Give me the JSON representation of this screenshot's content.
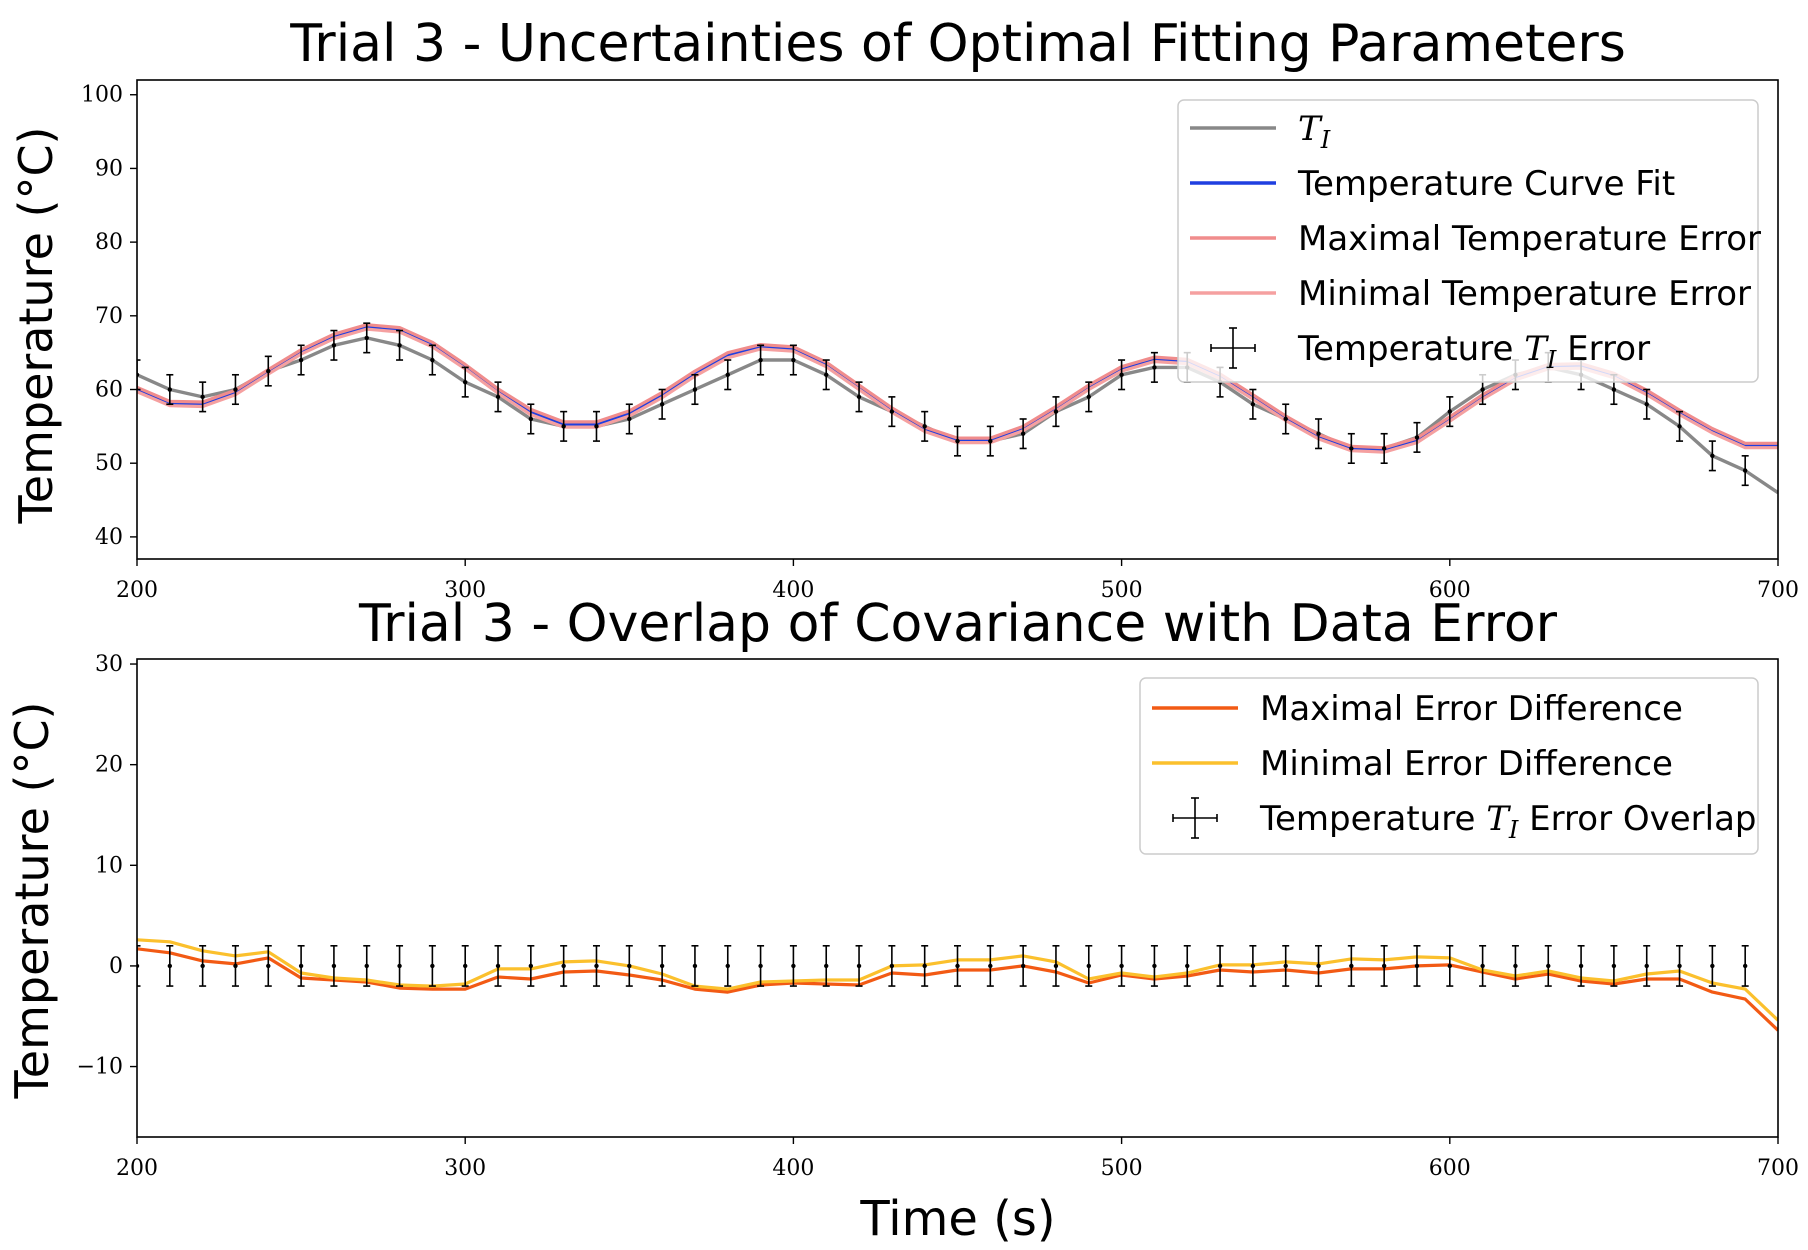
{
  "chart_data": [
    {
      "type": "line",
      "title": "Trial 3 - Uncertainties of Optimal Fitting Parameters",
      "xlabel": "",
      "ylabel": "Temperature (°C)",
      "xlim": [
        200,
        700
      ],
      "ylim": [
        37,
        102
      ],
      "xticks": [
        200,
        300,
        400,
        500,
        600,
        700
      ],
      "yticks": [
        40,
        50,
        60,
        70,
        80,
        90,
        100
      ],
      "grid": false,
      "legend_position": "upper-right",
      "x": [
        200,
        210,
        220,
        230,
        240,
        250,
        260,
        270,
        280,
        290,
        300,
        310,
        320,
        330,
        340,
        350,
        360,
        370,
        380,
        390,
        400,
        410,
        420,
        430,
        440,
        450,
        460,
        470,
        480,
        490,
        500,
        510,
        520,
        530,
        540,
        550,
        560,
        570,
        580,
        590,
        600,
        610,
        620,
        630,
        640,
        650,
        660,
        670,
        680,
        690,
        700
      ],
      "series": [
        {
          "name": "T_I",
          "legend_label": "TI",
          "color": "#888888",
          "style": "line",
          "values": [
            62,
            60,
            59,
            60,
            62.5,
            64,
            66,
            67,
            66,
            64,
            61,
            59,
            56,
            55,
            55,
            56,
            58,
            60,
            62,
            64,
            64,
            62,
            59,
            57,
            55,
            53,
            53,
            54,
            57,
            59,
            62,
            63,
            63,
            61,
            58,
            56,
            54,
            52,
            52,
            53.5,
            57,
            60,
            62,
            63,
            62,
            60,
            58,
            55,
            51,
            49,
            46
          ]
        },
        {
          "name": "Temperature Curve Fit",
          "legend_label": "Temperature Curve Fit",
          "color": "#1f3fe0",
          "style": "line",
          "values": [
            60,
            58.1,
            58,
            59.6,
            62.4,
            65.1,
            67.2,
            68.5,
            68.1,
            66.1,
            63.1,
            59.8,
            56.9,
            55.2,
            55.2,
            56.7,
            59.2,
            62.1,
            64.6,
            65.8,
            65.5,
            63.4,
            60.3,
            57.2,
            54.6,
            53.1,
            53.1,
            54.7,
            57.4,
            60.3,
            62.8,
            64.1,
            63.8,
            61.8,
            59,
            56.1,
            53.6,
            52,
            51.8,
            53.1,
            56,
            59,
            61.6,
            63.1,
            63.2,
            61.9,
            59.6,
            56.9,
            54.4,
            52.4,
            52.4
          ]
        },
        {
          "name": "Maximal Temperature Error",
          "legend_label": "Maximal Temperature Error",
          "color": "#f08c8c",
          "style": "line",
          "values": [
            60.3,
            58.4,
            58.3,
            59.9,
            62.7,
            65.4,
            67.5,
            68.8,
            68.4,
            66.4,
            63.4,
            60.1,
            57.3,
            55.6,
            55.6,
            57.1,
            59.6,
            62.5,
            65,
            66.1,
            65.8,
            63.7,
            60.6,
            57.5,
            54.9,
            53.4,
            53.4,
            55,
            57.7,
            60.6,
            63.1,
            64.4,
            64.1,
            62.1,
            59.3,
            56.4,
            53.9,
            52.3,
            52.1,
            53.4,
            56.3,
            59.3,
            61.9,
            63.4,
            63.5,
            62.2,
            59.9,
            57.2,
            54.7,
            52.7,
            52.7
          ]
        },
        {
          "name": "Minimal Temperature Error",
          "legend_label": "Minimal Temperature Error",
          "color": "#f5a0a0",
          "style": "line",
          "values": [
            59.7,
            57.8,
            57.7,
            59.3,
            62.1,
            64.8,
            66.9,
            68.2,
            67.8,
            65.8,
            62.8,
            59.5,
            56.6,
            54.9,
            54.9,
            56.4,
            58.9,
            61.8,
            64.3,
            65.5,
            65.2,
            63.1,
            60,
            56.9,
            54.3,
            52.8,
            52.8,
            54.4,
            57.1,
            60,
            62.5,
            63.8,
            63.5,
            61.5,
            58.7,
            55.8,
            53.3,
            51.7,
            51.5,
            52.8,
            55.7,
            58.7,
            61.3,
            62.8,
            62.9,
            61.6,
            59.3,
            56.6,
            54.1,
            52.1,
            52.1
          ]
        },
        {
          "name": "Temperature T_I Error",
          "legend_label": "Temperature TI Error",
          "color": "#000000",
          "style": "errorbar",
          "error": 2,
          "errorbar_x_range": [
            200,
            690
          ]
        }
      ]
    },
    {
      "type": "line",
      "title": "Trial 3 - Overlap of Covariance with Data Error",
      "xlabel": "Time (s)",
      "ylabel": "Temperature (°C)",
      "xlim": [
        200,
        700
      ],
      "ylim": [
        -17,
        30.5
      ],
      "xticks": [
        200,
        300,
        400,
        500,
        600,
        700
      ],
      "yticks": [
        -10,
        0,
        10,
        20,
        30
      ],
      "grid": false,
      "legend_position": "upper-right",
      "x": [
        200,
        210,
        220,
        230,
        240,
        250,
        260,
        270,
        280,
        290,
        300,
        310,
        320,
        330,
        340,
        350,
        360,
        370,
        380,
        390,
        400,
        410,
        420,
        430,
        440,
        450,
        460,
        470,
        480,
        490,
        500,
        510,
        520,
        530,
        540,
        550,
        560,
        570,
        580,
        590,
        600,
        610,
        620,
        630,
        640,
        650,
        660,
        670,
        680,
        690,
        700
      ],
      "series": [
        {
          "name": "Maximal Error Difference",
          "legend_label": "Maximal Error Difference",
          "color": "#f25a14",
          "style": "line",
          "values": [
            1.7,
            1.3,
            0.5,
            0.2,
            0.8,
            -1.2,
            -1.4,
            -1.6,
            -2.2,
            -2.3,
            -2.3,
            -1.1,
            -1.3,
            -0.6,
            -0.5,
            -0.9,
            -1.4,
            -2.3,
            -2.6,
            -1.9,
            -1.7,
            -1.8,
            -1.9,
            -0.7,
            -0.9,
            -0.4,
            -0.4,
            0,
            -0.6,
            -1.7,
            -0.9,
            -1.3,
            -1,
            -0.4,
            -0.6,
            -0.4,
            -0.7,
            -0.3,
            -0.3,
            0,
            0.1,
            -0.6,
            -1.3,
            -0.8,
            -1.5,
            -1.8,
            -1.3,
            -1.3,
            -2.6,
            -3.3,
            -6.4
          ]
        },
        {
          "name": "Minimal Error Difference",
          "legend_label": "Minimal Error Difference",
          "color": "#fbc02d",
          "style": "line",
          "values": [
            2.6,
            2.4,
            1.5,
            1.0,
            1.4,
            -0.7,
            -1.2,
            -1.4,
            -1.9,
            -2.0,
            -1.8,
            -0.3,
            -0.3,
            0.4,
            0.5,
            0.0,
            -0.8,
            -2.0,
            -2.3,
            -1.6,
            -1.5,
            -1.4,
            -1.4,
            0.0,
            0.1,
            0.6,
            0.6,
            1.0,
            0.4,
            -1.3,
            -0.7,
            -1.1,
            -0.7,
            0.1,
            0.1,
            0.4,
            0.2,
            0.7,
            0.6,
            0.9,
            0.8,
            -0.4,
            -1.0,
            -0.5,
            -1.2,
            -1.5,
            -0.8,
            -0.5,
            -1.7,
            -2.3,
            -5.4
          ]
        },
        {
          "name": "Temperature T_I Error Overlap",
          "legend_label": "Temperature TI Error Overlap",
          "color": "#000000",
          "style": "errorbar",
          "error": 2,
          "errorbar_x_range": [
            200,
            690
          ]
        }
      ]
    }
  ]
}
